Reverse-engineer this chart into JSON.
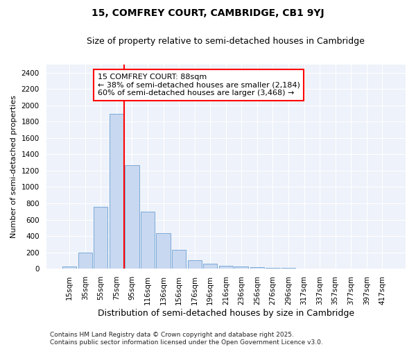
{
  "title1": "15, COMFREY COURT, CAMBRIDGE, CB1 9YJ",
  "title2": "Size of property relative to semi-detached houses in Cambridge",
  "xlabel": "Distribution of semi-detached houses by size in Cambridge",
  "ylabel": "Number of semi-detached properties",
  "bar_labels": [
    "15sqm",
    "35sqm",
    "55sqm",
    "75sqm",
    "95sqm",
    "116sqm",
    "136sqm",
    "156sqm",
    "176sqm",
    "196sqm",
    "216sqm",
    "236sqm",
    "256sqm",
    "276sqm",
    "296sqm",
    "317sqm",
    "337sqm",
    "357sqm",
    "377sqm",
    "397sqm",
    "417sqm"
  ],
  "bar_values": [
    25,
    200,
    760,
    1900,
    1270,
    695,
    435,
    230,
    105,
    62,
    35,
    28,
    18,
    12,
    8,
    4,
    2,
    1,
    1,
    0,
    0
  ],
  "bar_color": "#c8d8f0",
  "bar_edge_color": "#7aaad8",
  "vline_color": "red",
  "vline_x": 3.5,
  "annotation_title": "15 COMFREY COURT: 88sqm",
  "annotation_line1": "← 38% of semi-detached houses are smaller (2,184)",
  "annotation_line2": "60% of semi-detached houses are larger (3,468) →",
  "annotation_box_facecolor": "white",
  "annotation_box_edgecolor": "red",
  "ylim": [
    0,
    2500
  ],
  "yticks": [
    0,
    200,
    400,
    600,
    800,
    1000,
    1200,
    1400,
    1600,
    1800,
    2000,
    2200,
    2400
  ],
  "footer1": "Contains HM Land Registry data © Crown copyright and database right 2025.",
  "footer2": "Contains public sector information licensed under the Open Government Licence v3.0.",
  "plot_bg_color": "#eef2fa",
  "fig_bg_color": "#ffffff",
  "title1_fontsize": 10,
  "title2_fontsize": 9,
  "xlabel_fontsize": 9,
  "ylabel_fontsize": 8,
  "tick_fontsize": 7.5,
  "annot_fontsize": 8,
  "footer_fontsize": 6.5
}
